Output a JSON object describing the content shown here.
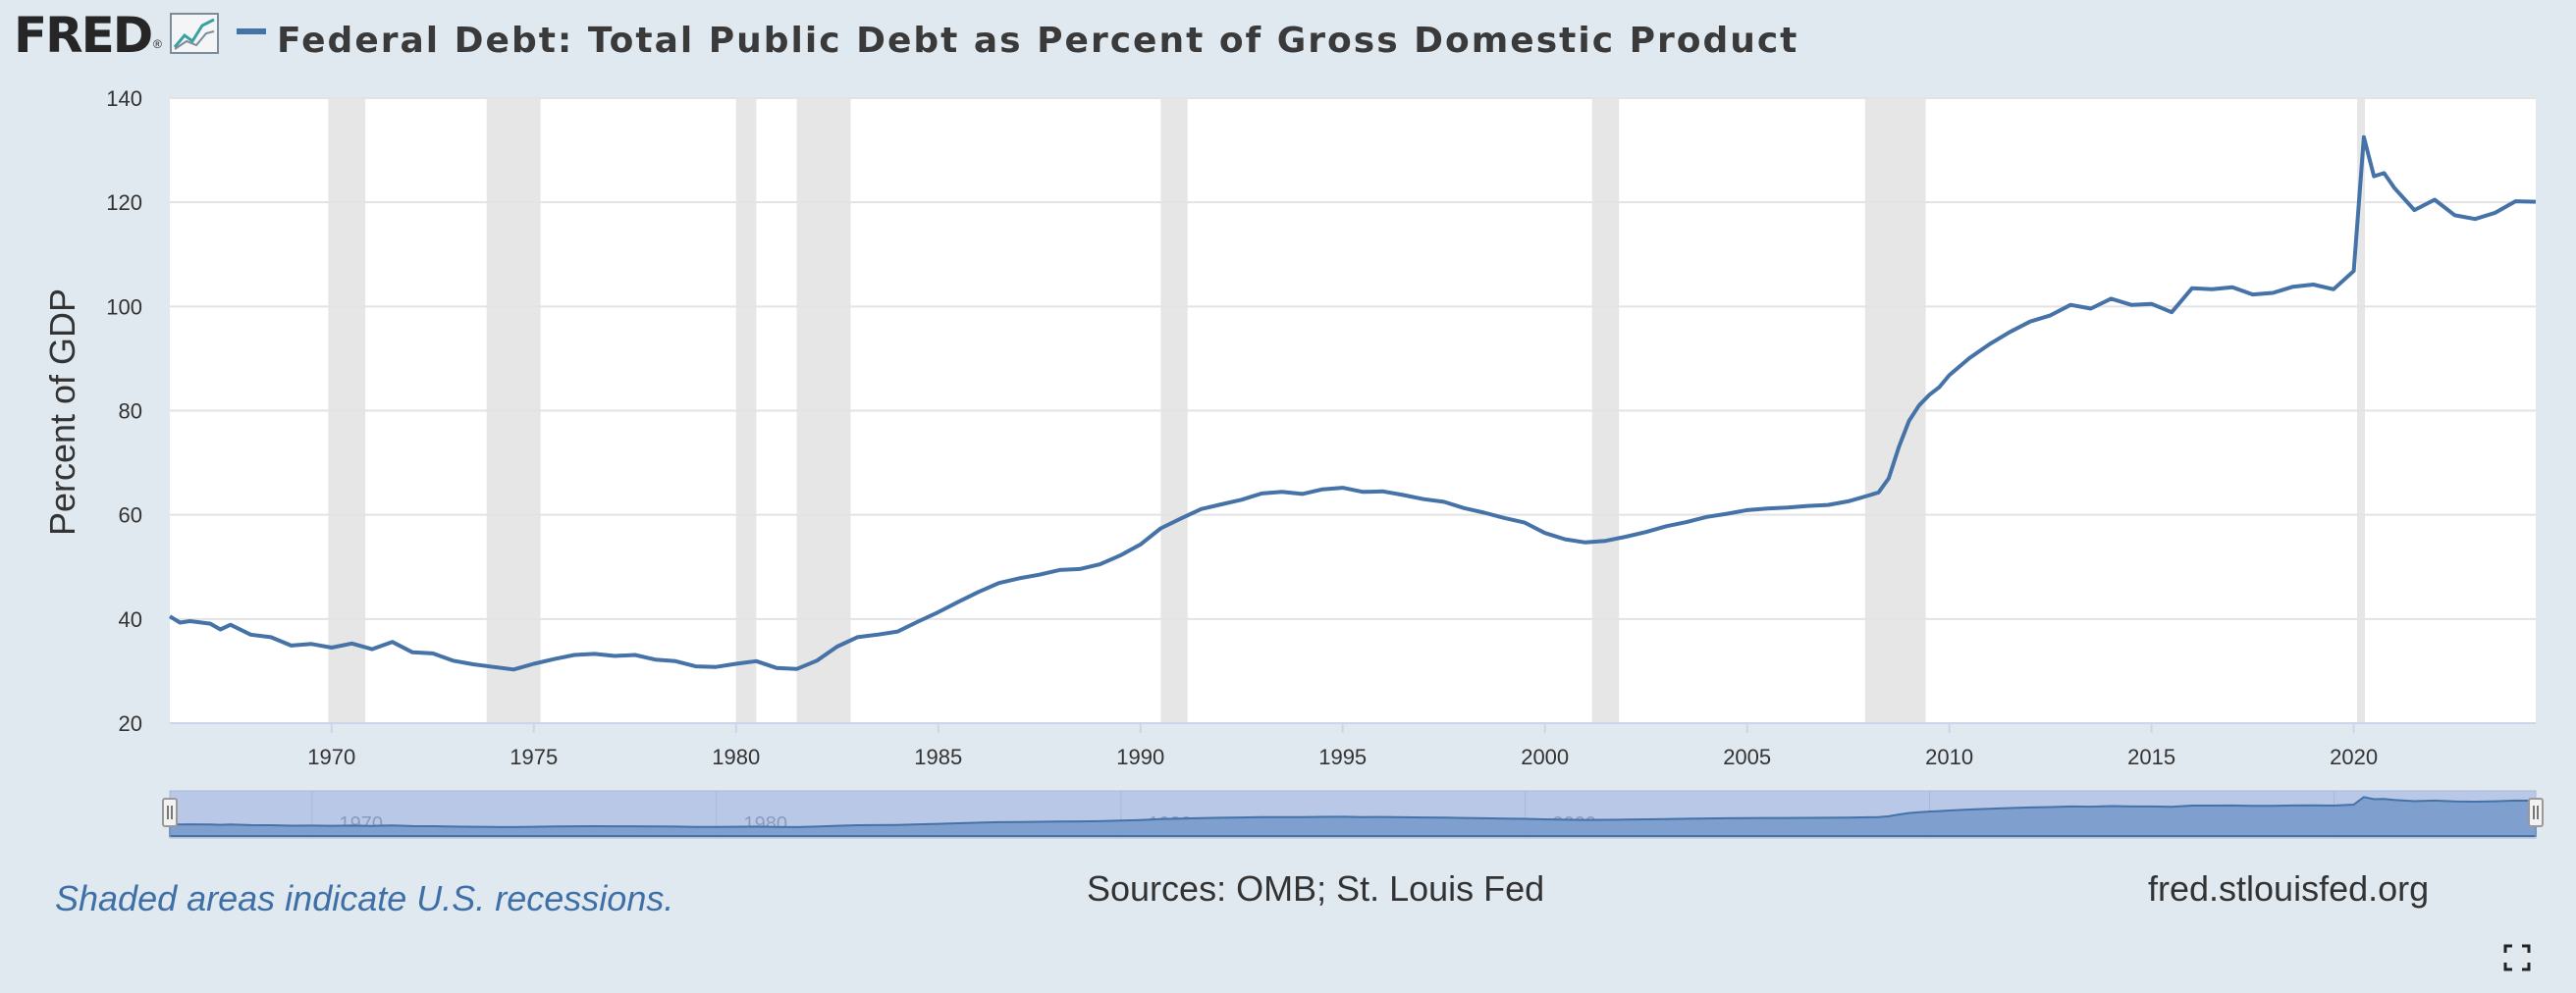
{
  "header": {
    "logo_text": "FRED",
    "logo_mark": "®",
    "title": "Federal Debt: Total Public Debt as Percent of Gross Domestic Product"
  },
  "footer": {
    "note": "Shaded areas indicate U.S. recessions.",
    "source": "Sources: OMB; St. Louis Fed",
    "site": "fred.stlouisfed.org"
  },
  "icons": {
    "logo_chart": "line-chart-icon",
    "fullscreen": "fullscreen-expand-icon",
    "nav_handles": "drag-handle-icon"
  },
  "colors": {
    "series": "#4572a7",
    "recession": "#e6e6e6",
    "plot_bg": "#ffffff",
    "page_bg": "#e1e9f0",
    "navigator_fill": "#7f9fcf",
    "navigator_mask": "#b9c8e6"
  },
  "chart_data": {
    "type": "line",
    "title": "Federal Debt: Total Public Debt as Percent of Gross Domestic Product",
    "xlabel": "",
    "ylabel": "Percent of GDP",
    "xlim": [
      "1966-01-01",
      "2024-07-01"
    ],
    "ylim": [
      20,
      140
    ],
    "yticks": [
      20,
      40,
      60,
      80,
      100,
      120,
      140
    ],
    "xticks": [
      "1970",
      "1975",
      "1980",
      "1985",
      "1990",
      "1995",
      "2000",
      "2005",
      "2010",
      "2015",
      "2020"
    ],
    "grid": true,
    "legend": "none",
    "recessions": [
      [
        "1969-12-01",
        "1970-11-01"
      ],
      [
        "1973-11-01",
        "1975-03-01"
      ],
      [
        "1980-01-01",
        "1980-07-01"
      ],
      [
        "1981-07-01",
        "1982-11-01"
      ],
      [
        "1990-07-01",
        "1991-03-01"
      ],
      [
        "2001-03-01",
        "2001-11-01"
      ],
      [
        "2007-12-01",
        "2009-06-01"
      ],
      [
        "2020-02-01",
        "2020-04-01"
      ]
    ],
    "series": [
      {
        "name": "",
        "x": [
          1966.0,
          1966.25,
          1966.5,
          1967.0,
          1967.25,
          1967.5,
          1968.0,
          1968.5,
          1969.0,
          1969.5,
          1970.0,
          1970.5,
          1971.0,
          1971.5,
          1972.0,
          1972.5,
          1973.0,
          1973.5,
          1974.0,
          1974.5,
          1975.0,
          1975.5,
          1976.0,
          1976.5,
          1977.0,
          1977.5,
          1978.0,
          1978.5,
          1979.0,
          1979.5,
          1980.0,
          1980.5,
          1981.0,
          1981.5,
          1982.0,
          1982.5,
          1983.0,
          1983.5,
          1984.0,
          1984.5,
          1985.0,
          1985.5,
          1986.0,
          1986.5,
          1987.0,
          1987.5,
          1988.0,
          1988.5,
          1989.0,
          1989.5,
          1990.0,
          1990.5,
          1991.0,
          1991.5,
          1992.0,
          1992.5,
          1993.0,
          1993.5,
          1994.0,
          1994.5,
          1995.0,
          1995.5,
          1996.0,
          1996.5,
          1997.0,
          1997.5,
          1998.0,
          1998.5,
          1999.0,
          1999.5,
          2000.0,
          2000.5,
          2001.0,
          2001.5,
          2002.0,
          2002.5,
          2003.0,
          2003.5,
          2004.0,
          2004.5,
          2005.0,
          2005.5,
          2006.0,
          2006.5,
          2007.0,
          2007.5,
          2008.0,
          2008.25,
          2008.5,
          2008.75,
          2009.0,
          2009.25,
          2009.5,
          2009.75,
          2010.0,
          2010.5,
          2011.0,
          2011.5,
          2012.0,
          2012.5,
          2013.0,
          2013.5,
          2014.0,
          2014.5,
          2015.0,
          2015.5,
          2016.0,
          2016.5,
          2017.0,
          2017.5,
          2018.0,
          2018.5,
          2019.0,
          2019.5,
          2020.0,
          2020.25,
          2020.5,
          2020.75,
          2021.0,
          2021.5,
          2022.0,
          2022.5,
          2023.0,
          2023.5,
          2024.0,
          2024.5
        ],
        "y": [
          40.5,
          39.3,
          39.6,
          39.1,
          38.0,
          38.9,
          37.0,
          36.5,
          34.9,
          35.2,
          34.5,
          35.3,
          34.2,
          35.6,
          33.6,
          33.4,
          32.0,
          31.3,
          30.8,
          30.3,
          31.4,
          32.3,
          33.1,
          33.3,
          32.9,
          33.1,
          32.2,
          31.9,
          30.9,
          30.8,
          31.4,
          31.9,
          30.6,
          30.4,
          32.0,
          34.7,
          36.5,
          37.0,
          37.6,
          39.5,
          41.3,
          43.3,
          45.2,
          46.9,
          47.8,
          48.5,
          49.4,
          49.6,
          50.5,
          52.2,
          54.3,
          57.4,
          59.3,
          61.1,
          62.0,
          62.9,
          64.1,
          64.4,
          64.0,
          64.9,
          65.2,
          64.4,
          64.5,
          63.8,
          63.0,
          62.5,
          61.3,
          60.4,
          59.4,
          58.5,
          56.5,
          55.3,
          54.7,
          55.0,
          55.8,
          56.7,
          57.8,
          58.6,
          59.6,
          60.2,
          60.9,
          61.2,
          61.4,
          61.7,
          61.9,
          62.6,
          63.7,
          64.3,
          67.0,
          73.0,
          78.0,
          81.0,
          83.0,
          84.5,
          86.8,
          90.1,
          92.8,
          95.1,
          97.1,
          98.3,
          100.3,
          99.6,
          101.5,
          100.3,
          100.5,
          98.9,
          103.5,
          103.3,
          103.7,
          102.3,
          102.6,
          103.8,
          104.2,
          103.3,
          106.8,
          132.5,
          125.0,
          125.6,
          122.8,
          118.5,
          120.5,
          117.5,
          116.8,
          118.0,
          120.2,
          120.1
        ]
      }
    ]
  }
}
